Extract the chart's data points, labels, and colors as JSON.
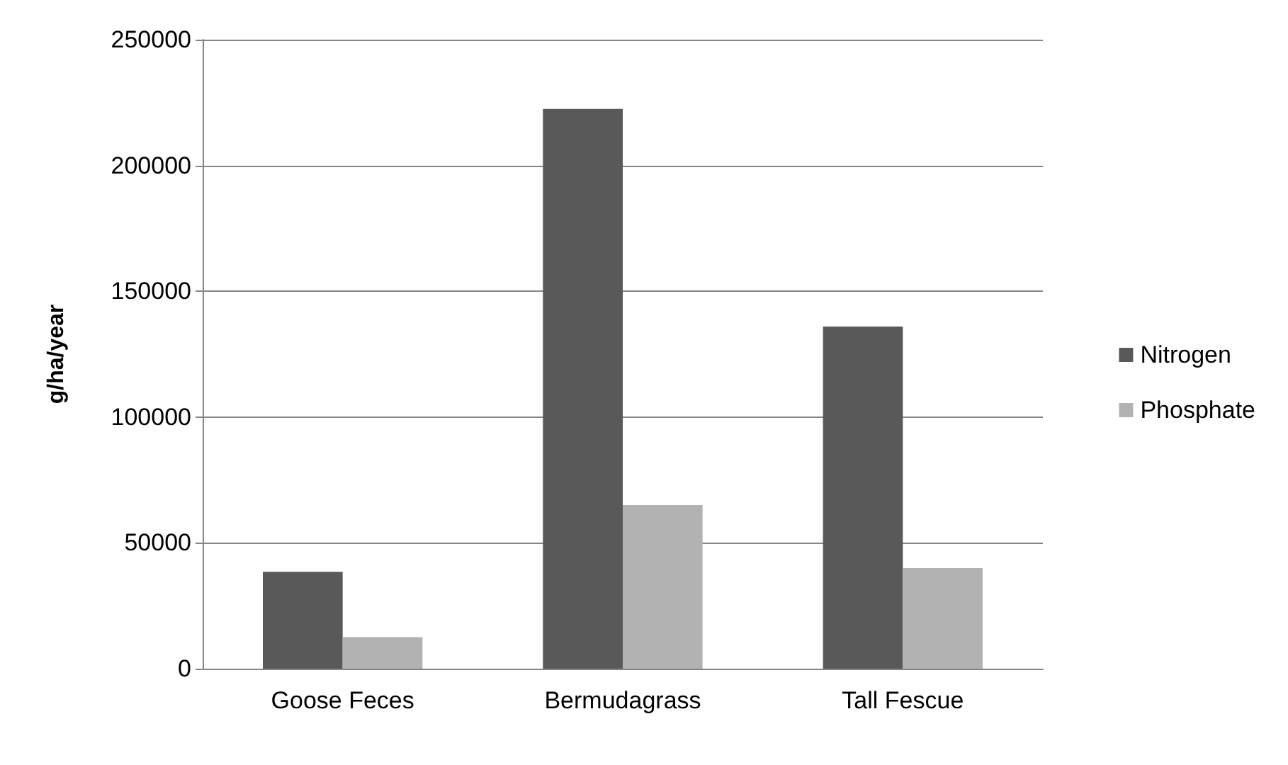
{
  "chart_data": {
    "type": "bar",
    "ylabel": "g/ha/year",
    "categories": [
      "Goose Feces",
      "Bermudagrass",
      "Tall Fescue"
    ],
    "series": [
      {
        "name": "Nitrogen",
        "color": "#595959",
        "values": [
          38500,
          222500,
          136000
        ]
      },
      {
        "name": "Phosphate",
        "color": "#b2b2b2",
        "values": [
          12500,
          65000,
          40000
        ]
      }
    ],
    "ylim": [
      0,
      250000
    ],
    "yticks": [
      0,
      50000,
      100000,
      150000,
      200000,
      250000
    ],
    "grid": "y",
    "legend": "right"
  }
}
